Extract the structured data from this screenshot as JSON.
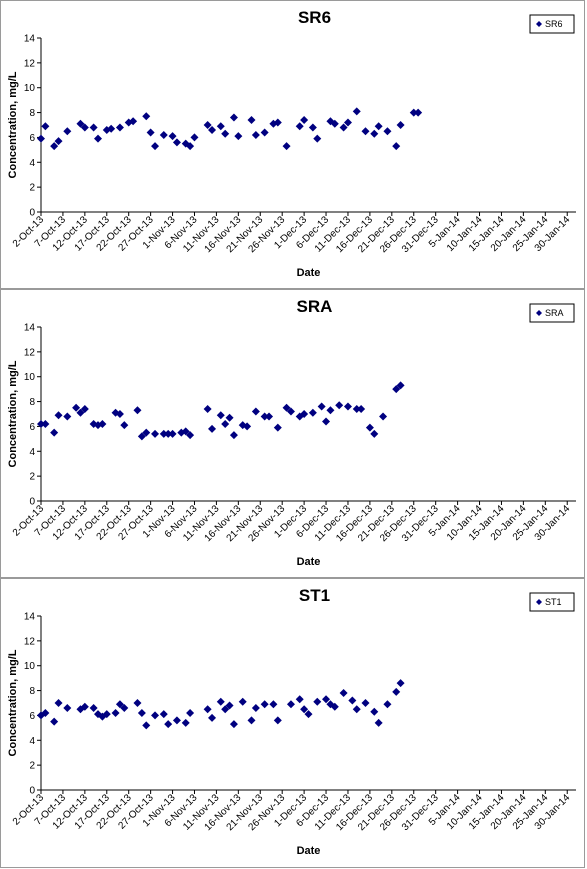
{
  "chart_data": [
    {
      "type": "scatter",
      "title": "SR6",
      "xlabel": "Date",
      "ylabel": "Concentration, mg/L",
      "ylim": [
        0,
        14
      ],
      "yticks": [
        "0",
        "2",
        "4",
        "6",
        "8",
        "10",
        "12",
        "14"
      ],
      "xlim": [
        "2-Oct-13",
        "1-Feb-14"
      ],
      "xticks": [
        "2-Oct-13",
        "7-Oct-13",
        "12-Oct-13",
        "17-Oct-13",
        "22-Oct-13",
        "27-Oct-13",
        "1-Nov-13",
        "6-Nov-13",
        "11-Nov-13",
        "16-Nov-13",
        "21-Nov-13",
        "26-Nov-13",
        "1-Dec-13",
        "6-Dec-13",
        "11-Dec-13",
        "16-Dec-13",
        "21-Dec-13",
        "26-Dec-13",
        "31-Dec-13",
        "5-Jan-14",
        "10-Jan-14",
        "15-Jan-14",
        "20-Jan-14",
        "25-Jan-14",
        "30-Jan-14"
      ],
      "grid": false,
      "legend_position": "top-right",
      "marker_color": "#000080",
      "series": [
        {
          "name": "SR6",
          "points": [
            {
              "x": "2-Oct-13",
              "y": 5.9
            },
            {
              "x": "3-Oct-13",
              "y": 6.9
            },
            {
              "x": "5-Oct-13",
              "y": 5.3
            },
            {
              "x": "6-Oct-13",
              "y": 5.7
            },
            {
              "x": "8-Oct-13",
              "y": 6.5
            },
            {
              "x": "11-Oct-13",
              "y": 7.1
            },
            {
              "x": "12-Oct-13",
              "y": 6.8
            },
            {
              "x": "14-Oct-13",
              "y": 6.8
            },
            {
              "x": "15-Oct-13",
              "y": 5.9
            },
            {
              "x": "17-Oct-13",
              "y": 6.6
            },
            {
              "x": "18-Oct-13",
              "y": 6.7
            },
            {
              "x": "20-Oct-13",
              "y": 6.8
            },
            {
              "x": "22-Oct-13",
              "y": 7.2
            },
            {
              "x": "23-Oct-13",
              "y": 7.3
            },
            {
              "x": "26-Oct-13",
              "y": 7.7
            },
            {
              "x": "27-Oct-13",
              "y": 6.4
            },
            {
              "x": "28-Oct-13",
              "y": 5.3
            },
            {
              "x": "30-Oct-13",
              "y": 6.2
            },
            {
              "x": "1-Nov-13",
              "y": 6.1
            },
            {
              "x": "2-Nov-13",
              "y": 5.6
            },
            {
              "x": "4-Nov-13",
              "y": 5.5
            },
            {
              "x": "5-Nov-13",
              "y": 5.3
            },
            {
              "x": "6-Nov-13",
              "y": 6.0
            },
            {
              "x": "9-Nov-13",
              "y": 7.0
            },
            {
              "x": "10-Nov-13",
              "y": 6.6
            },
            {
              "x": "12-Nov-13",
              "y": 6.9
            },
            {
              "x": "13-Nov-13",
              "y": 6.3
            },
            {
              "x": "15-Nov-13",
              "y": 7.6
            },
            {
              "x": "16-Nov-13",
              "y": 6.1
            },
            {
              "x": "19-Nov-13",
              "y": 7.4
            },
            {
              "x": "20-Nov-13",
              "y": 6.2
            },
            {
              "x": "22-Nov-13",
              "y": 6.4
            },
            {
              "x": "24-Nov-13",
              "y": 7.1
            },
            {
              "x": "25-Nov-13",
              "y": 7.2
            },
            {
              "x": "27-Nov-13",
              "y": 5.3
            },
            {
              "x": "30-Nov-13",
              "y": 6.9
            },
            {
              "x": "1-Dec-13",
              "y": 7.4
            },
            {
              "x": "3-Dec-13",
              "y": 6.8
            },
            {
              "x": "4-Dec-13",
              "y": 5.9
            },
            {
              "x": "7-Dec-13",
              "y": 7.3
            },
            {
              "x": "8-Dec-13",
              "y": 7.1
            },
            {
              "x": "10-Dec-13",
              "y": 6.8
            },
            {
              "x": "11-Dec-13",
              "y": 7.2
            },
            {
              "x": "13-Dec-13",
              "y": 8.1
            },
            {
              "x": "15-Dec-13",
              "y": 6.5
            },
            {
              "x": "17-Dec-13",
              "y": 6.3
            },
            {
              "x": "18-Dec-13",
              "y": 6.9
            },
            {
              "x": "20-Dec-13",
              "y": 6.5
            },
            {
              "x": "22-Dec-13",
              "y": 5.3
            },
            {
              "x": "23-Dec-13",
              "y": 7.0
            },
            {
              "x": "26-Dec-13",
              "y": 8.0
            },
            {
              "x": "27-Dec-13",
              "y": 8.0
            }
          ]
        }
      ]
    },
    {
      "type": "scatter",
      "title": "SRA",
      "xlabel": "Date",
      "ylabel": "Concentration, mg/L",
      "ylim": [
        0,
        14
      ],
      "yticks": [
        "0",
        "2",
        "4",
        "6",
        "8",
        "10",
        "12",
        "14"
      ],
      "xlim": [
        "2-Oct-13",
        "1-Feb-14"
      ],
      "xticks": [
        "2-Oct-13",
        "7-Oct-13",
        "12-Oct-13",
        "17-Oct-13",
        "22-Oct-13",
        "27-Oct-13",
        "1-Nov-13",
        "6-Nov-13",
        "11-Nov-13",
        "16-Nov-13",
        "21-Nov-13",
        "26-Nov-13",
        "1-Dec-13",
        "6-Dec-13",
        "11-Dec-13",
        "16-Dec-13",
        "21-Dec-13",
        "26-Dec-13",
        "31-Dec-13",
        "5-Jan-14",
        "10-Jan-14",
        "15-Jan-14",
        "20-Jan-14",
        "25-Jan-14",
        "30-Jan-14"
      ],
      "grid": false,
      "legend_position": "top-right",
      "marker_color": "#000080",
      "series": [
        {
          "name": "SRA",
          "points": [
            {
              "x": "2-Oct-13",
              "y": 6.2
            },
            {
              "x": "3-Oct-13",
              "y": 6.2
            },
            {
              "x": "5-Oct-13",
              "y": 5.5
            },
            {
              "x": "6-Oct-13",
              "y": 6.9
            },
            {
              "x": "8-Oct-13",
              "y": 6.8
            },
            {
              "x": "10-Oct-13",
              "y": 7.5
            },
            {
              "x": "11-Oct-13",
              "y": 7.1
            },
            {
              "x": "12-Oct-13",
              "y": 7.4
            },
            {
              "x": "14-Oct-13",
              "y": 6.2
            },
            {
              "x": "15-Oct-13",
              "y": 6.1
            },
            {
              "x": "16-Oct-13",
              "y": 6.2
            },
            {
              "x": "19-Oct-13",
              "y": 7.1
            },
            {
              "x": "20-Oct-13",
              "y": 7.0
            },
            {
              "x": "21-Oct-13",
              "y": 6.1
            },
            {
              "x": "24-Oct-13",
              "y": 7.3
            },
            {
              "x": "25-Oct-13",
              "y": 5.2
            },
            {
              "x": "26-Oct-13",
              "y": 5.5
            },
            {
              "x": "28-Oct-13",
              "y": 5.4
            },
            {
              "x": "30-Oct-13",
              "y": 5.4
            },
            {
              "x": "31-Oct-13",
              "y": 5.4
            },
            {
              "x": "1-Nov-13",
              "y": 5.4
            },
            {
              "x": "3-Nov-13",
              "y": 5.5
            },
            {
              "x": "4-Nov-13",
              "y": 5.6
            },
            {
              "x": "5-Nov-13",
              "y": 5.3
            },
            {
              "x": "9-Nov-13",
              "y": 7.4
            },
            {
              "x": "10-Nov-13",
              "y": 5.8
            },
            {
              "x": "12-Nov-13",
              "y": 6.9
            },
            {
              "x": "13-Nov-13",
              "y": 6.2
            },
            {
              "x": "14-Nov-13",
              "y": 6.7
            },
            {
              "x": "15-Nov-13",
              "y": 5.3
            },
            {
              "x": "17-Nov-13",
              "y": 6.1
            },
            {
              "x": "18-Nov-13",
              "y": 6.0
            },
            {
              "x": "20-Nov-13",
              "y": 7.2
            },
            {
              "x": "22-Nov-13",
              "y": 6.8
            },
            {
              "x": "23-Nov-13",
              "y": 6.8
            },
            {
              "x": "25-Nov-13",
              "y": 5.9
            },
            {
              "x": "27-Nov-13",
              "y": 7.5
            },
            {
              "x": "28-Nov-13",
              "y": 7.2
            },
            {
              "x": "30-Nov-13",
              "y": 6.8
            },
            {
              "x": "1-Dec-13",
              "y": 7.0
            },
            {
              "x": "3-Dec-13",
              "y": 7.1
            },
            {
              "x": "5-Dec-13",
              "y": 7.6
            },
            {
              "x": "6-Dec-13",
              "y": 6.4
            },
            {
              "x": "7-Dec-13",
              "y": 7.3
            },
            {
              "x": "9-Dec-13",
              "y": 7.7
            },
            {
              "x": "11-Dec-13",
              "y": 7.6
            },
            {
              "x": "13-Dec-13",
              "y": 7.4
            },
            {
              "x": "14-Dec-13",
              "y": 7.4
            },
            {
              "x": "16-Dec-13",
              "y": 5.9
            },
            {
              "x": "17-Dec-13",
              "y": 5.4
            },
            {
              "x": "19-Dec-13",
              "y": 6.8
            },
            {
              "x": "22-Dec-13",
              "y": 9.0
            },
            {
              "x": "23-Dec-13",
              "y": 9.3
            }
          ]
        }
      ]
    },
    {
      "type": "scatter",
      "title": "ST1",
      "xlabel": "Date",
      "ylabel": "Concentration, mg/L",
      "ylim": [
        0,
        14
      ],
      "yticks": [
        "0",
        "2",
        "4",
        "6",
        "8",
        "10",
        "12",
        "14"
      ],
      "xlim": [
        "2-Oct-13",
        "1-Feb-14"
      ],
      "xticks": [
        "2-Oct-13",
        "7-Oct-13",
        "12-Oct-13",
        "17-Oct-13",
        "22-Oct-13",
        "27-Oct-13",
        "1-Nov-13",
        "6-Nov-13",
        "11-Nov-13",
        "16-Nov-13",
        "21-Nov-13",
        "26-Nov-13",
        "1-Dec-13",
        "6-Dec-13",
        "11-Dec-13",
        "16-Dec-13",
        "21-Dec-13",
        "26-Dec-13",
        "31-Dec-13",
        "5-Jan-14",
        "10-Jan-14",
        "15-Jan-14",
        "20-Jan-14",
        "25-Jan-14",
        "30-Jan-14"
      ],
      "grid": false,
      "legend_position": "top-right",
      "marker_color": "#000080",
      "series": [
        {
          "name": "ST1",
          "points": [
            {
              "x": "2-Oct-13",
              "y": 6.0
            },
            {
              "x": "3-Oct-13",
              "y": 6.2
            },
            {
              "x": "5-Oct-13",
              "y": 5.5
            },
            {
              "x": "6-Oct-13",
              "y": 7.0
            },
            {
              "x": "8-Oct-13",
              "y": 6.6
            },
            {
              "x": "11-Oct-13",
              "y": 6.5
            },
            {
              "x": "12-Oct-13",
              "y": 6.7
            },
            {
              "x": "14-Oct-13",
              "y": 6.6
            },
            {
              "x": "15-Oct-13",
              "y": 6.1
            },
            {
              "x": "16-Oct-13",
              "y": 5.9
            },
            {
              "x": "17-Oct-13",
              "y": 6.1
            },
            {
              "x": "19-Oct-13",
              "y": 6.2
            },
            {
              "x": "20-Oct-13",
              "y": 6.9
            },
            {
              "x": "21-Oct-13",
              "y": 6.6
            },
            {
              "x": "24-Oct-13",
              "y": 7.0
            },
            {
              "x": "25-Oct-13",
              "y": 6.2
            },
            {
              "x": "26-Oct-13",
              "y": 5.2
            },
            {
              "x": "28-Oct-13",
              "y": 6.0
            },
            {
              "x": "30-Oct-13",
              "y": 6.1
            },
            {
              "x": "31-Oct-13",
              "y": 5.3
            },
            {
              "x": "2-Nov-13",
              "y": 5.6
            },
            {
              "x": "4-Nov-13",
              "y": 5.4
            },
            {
              "x": "5-Nov-13",
              "y": 6.2
            },
            {
              "x": "9-Nov-13",
              "y": 6.5
            },
            {
              "x": "10-Nov-13",
              "y": 5.8
            },
            {
              "x": "12-Nov-13",
              "y": 7.1
            },
            {
              "x": "13-Nov-13",
              "y": 6.5
            },
            {
              "x": "14-Nov-13",
              "y": 6.8
            },
            {
              "x": "15-Nov-13",
              "y": 5.3
            },
            {
              "x": "17-Nov-13",
              "y": 7.1
            },
            {
              "x": "19-Nov-13",
              "y": 5.6
            },
            {
              "x": "20-Nov-13",
              "y": 6.6
            },
            {
              "x": "22-Nov-13",
              "y": 6.9
            },
            {
              "x": "24-Nov-13",
              "y": 6.9
            },
            {
              "x": "25-Nov-13",
              "y": 5.6
            },
            {
              "x": "28-Nov-13",
              "y": 6.9
            },
            {
              "x": "30-Nov-13",
              "y": 7.3
            },
            {
              "x": "1-Dec-13",
              "y": 6.5
            },
            {
              "x": "2-Dec-13",
              "y": 6.1
            },
            {
              "x": "4-Dec-13",
              "y": 7.1
            },
            {
              "x": "6-Dec-13",
              "y": 7.3
            },
            {
              "x": "7-Dec-13",
              "y": 6.9
            },
            {
              "x": "8-Dec-13",
              "y": 6.7
            },
            {
              "x": "10-Dec-13",
              "y": 7.8
            },
            {
              "x": "12-Dec-13",
              "y": 7.2
            },
            {
              "x": "13-Dec-13",
              "y": 6.5
            },
            {
              "x": "15-Dec-13",
              "y": 7.0
            },
            {
              "x": "17-Dec-13",
              "y": 6.3
            },
            {
              "x": "18-Dec-13",
              "y": 5.4
            },
            {
              "x": "20-Dec-13",
              "y": 6.9
            },
            {
              "x": "22-Dec-13",
              "y": 7.9
            },
            {
              "x": "23-Dec-13",
              "y": 8.6
            }
          ]
        }
      ]
    }
  ]
}
